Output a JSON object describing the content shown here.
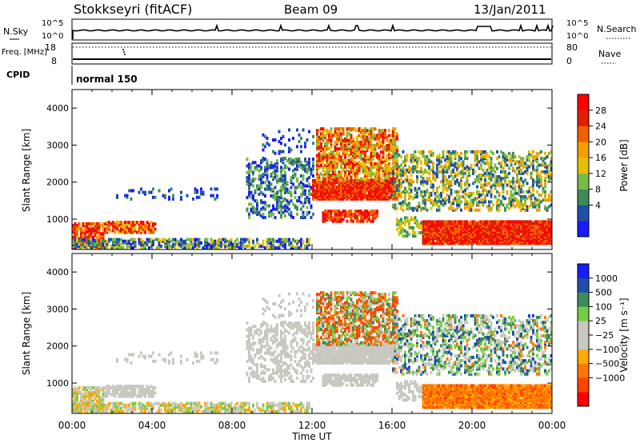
{
  "header": {
    "title": "Stokkseyri (fitACF)",
    "beam": "Beam 09",
    "date": "13/Jan/2011",
    "cpid_label": "CPID",
    "cpid_value": "normal 150"
  },
  "colors": {
    "power_scale": [
      "#1a1aff",
      "#1f4fa8",
      "#3f8a5a",
      "#77bb44",
      "#e6c000",
      "#f5a000",
      "#f06000",
      "#e02000",
      "#ff0000"
    ],
    "velocity_scale": [
      "#ff0000",
      "#ff4400",
      "#ff7700",
      "#ffaa00",
      "#c8c8c0",
      "#c8c8c0",
      "#77cc44",
      "#3f8a5a",
      "#1f4fa8",
      "#1a1aff"
    ],
    "ground_scatter": "#c8c8c0"
  },
  "chart_data": [
    {
      "type": "line",
      "name": "noise",
      "left_label": "N.Sky",
      "right_label": "N.Search",
      "left_ticks": [
        "10^5",
        "10^0"
      ],
      "right_ticks": [
        "10^5",
        "10^0"
      ]
    },
    {
      "type": "line",
      "name": "frequency-nave",
      "left_label": "Freq. [MHz]",
      "right_label": "Nave",
      "left_ticks": [
        "18",
        "8"
      ],
      "right_ticks": [
        "80",
        "0"
      ]
    },
    {
      "type": "heatmap",
      "name": "power",
      "ylabel": "Slant Range [km]",
      "colorbar_label": "Power [dB]",
      "colorbar_ticks": [
        "28",
        "24",
        "20",
        "16",
        "12",
        "8",
        "4"
      ],
      "yticks": [
        "4000",
        "3000",
        "2000",
        "1000"
      ],
      "ylim": [
        180,
        4500
      ],
      "xlim": [
        0,
        24
      ]
    },
    {
      "type": "heatmap",
      "name": "velocity",
      "ylabel": "Slant Range [km]",
      "xlabel": "Time UT",
      "colorbar_label": "Velocity [m s⁻¹]",
      "colorbar_ticks": [
        "1000",
        "500",
        "100",
        "25",
        "−25",
        "−100",
        "−500",
        "−1000"
      ],
      "yticks": [
        "4000",
        "3000",
        "2000",
        "1000"
      ],
      "xticks": [
        "00:00",
        "04:00",
        "08:00",
        "12:00",
        "16:00",
        "20:00",
        "00:00"
      ],
      "ylim": [
        180,
        4500
      ],
      "xlim": [
        0,
        24
      ]
    }
  ]
}
